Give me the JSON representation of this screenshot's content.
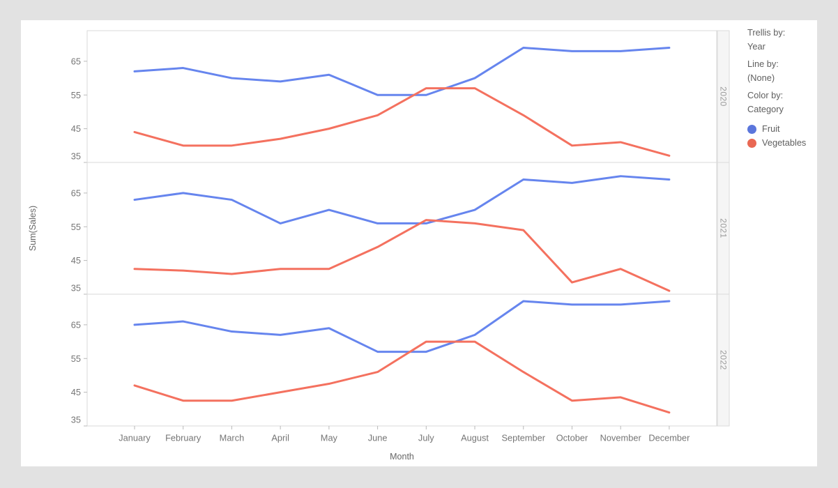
{
  "settings": {
    "trellis_by_label": "Trellis by:",
    "trellis_by_value": "Year",
    "line_by_label": "Line by:",
    "line_by_value": "(None)",
    "color_by_label": "Color by:",
    "color_by_value": "Category"
  },
  "legend": {
    "items": [
      {
        "label": "Fruit",
        "color": "#5b76dc"
      },
      {
        "label": "Vegetables",
        "color": "#e96853"
      }
    ]
  },
  "chart_data": {
    "type": "line",
    "title": "",
    "xlabel": "Month",
    "ylabel": "Sum(Sales)",
    "trellis_by": "Year",
    "grid": false,
    "categories": [
      "January",
      "February",
      "March",
      "April",
      "May",
      "June",
      "July",
      "August",
      "September",
      "October",
      "November",
      "December"
    ],
    "y_ticks": [
      65,
      55,
      45,
      35
    ],
    "ylim": [
      35,
      74
    ],
    "panels": [
      {
        "year": "2020",
        "series": [
          {
            "name": "Fruit",
            "color": "#6685ee",
            "values": [
              62,
              63,
              60,
              59,
              61,
              55,
              55,
              60,
              69,
              68,
              68,
              69
            ]
          },
          {
            "name": "Vegetables",
            "color": "#f4715f",
            "values": [
              44,
              40,
              40,
              42,
              45,
              49,
              57,
              57,
              49,
              40,
              41,
              37
            ]
          }
        ]
      },
      {
        "year": "2021",
        "series": [
          {
            "name": "Fruit",
            "color": "#6685ee",
            "values": [
              63,
              65,
              63,
              56,
              60,
              56,
              56,
              60,
              69,
              68,
              70,
              69
            ]
          },
          {
            "name": "Vegetables",
            "color": "#f4715f",
            "values": [
              42.5,
              42,
              41,
              42.5,
              42.5,
              49,
              57,
              56,
              54,
              38.5,
              42.5,
              36
            ]
          }
        ]
      },
      {
        "year": "2022",
        "series": [
          {
            "name": "Fruit",
            "color": "#6685ee",
            "values": [
              65,
              66,
              63,
              62,
              64,
              57,
              57,
              62,
              72,
              71,
              71,
              72
            ]
          },
          {
            "name": "Vegetables",
            "color": "#f4715f",
            "values": [
              47,
              42.5,
              42.5,
              45,
              47.5,
              51,
              60,
              60,
              51,
              42.5,
              43.5,
              39
            ]
          }
        ]
      }
    ]
  }
}
